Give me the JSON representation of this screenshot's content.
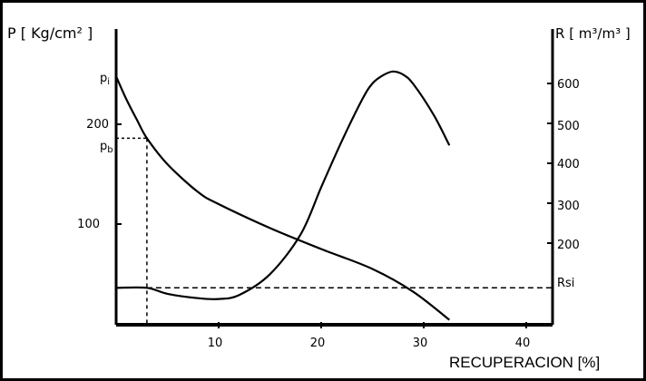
{
  "chart_data": {
    "type": "line",
    "xlabel": "RECUPERACION [%]",
    "ylabel_left": "P [ Kg/cm² ]",
    "ylabel_right": "R [ m³/m³ ]",
    "xlim": [
      0,
      42.5
    ],
    "x_ticks": [
      10,
      20,
      30,
      40
    ],
    "y_left_ticks": [
      100,
      200
    ],
    "y_left_ticks_text": [
      "100",
      "200"
    ],
    "y_left_special": [
      {
        "label": "p",
        "sub": "i",
        "value": 248
      },
      {
        "label": "p",
        "sub": "b",
        "value": 186
      }
    ],
    "y_right_ticks": [
      200,
      300,
      400,
      500,
      600
    ],
    "y_right_ticks_text": [
      "200",
      "300",
      "400",
      "500",
      "600"
    ],
    "rsi_label": "Rsi",
    "rsi_value": 88,
    "pb_recovery": 3,
    "series": [
      {
        "axis": "left",
        "x": [
          0,
          1,
          2,
          3,
          5,
          8,
          10,
          15,
          20,
          25,
          29,
          32.5
        ],
        "y": [
          248,
          225,
          205,
          186,
          160,
          132,
          120,
          96,
          75,
          55,
          32,
          4
        ]
      },
      {
        "axis": "right",
        "x": [
          0,
          3,
          5,
          8,
          10,
          12,
          15,
          18,
          20,
          22,
          24,
          25,
          26,
          27,
          28,
          29,
          31,
          32.5
        ],
        "y": [
          88,
          88,
          73,
          62,
          60,
          70,
          122,
          222,
          340,
          455,
          560,
          600,
          620,
          630,
          622,
          598,
          520,
          445
        ]
      }
    ]
  }
}
